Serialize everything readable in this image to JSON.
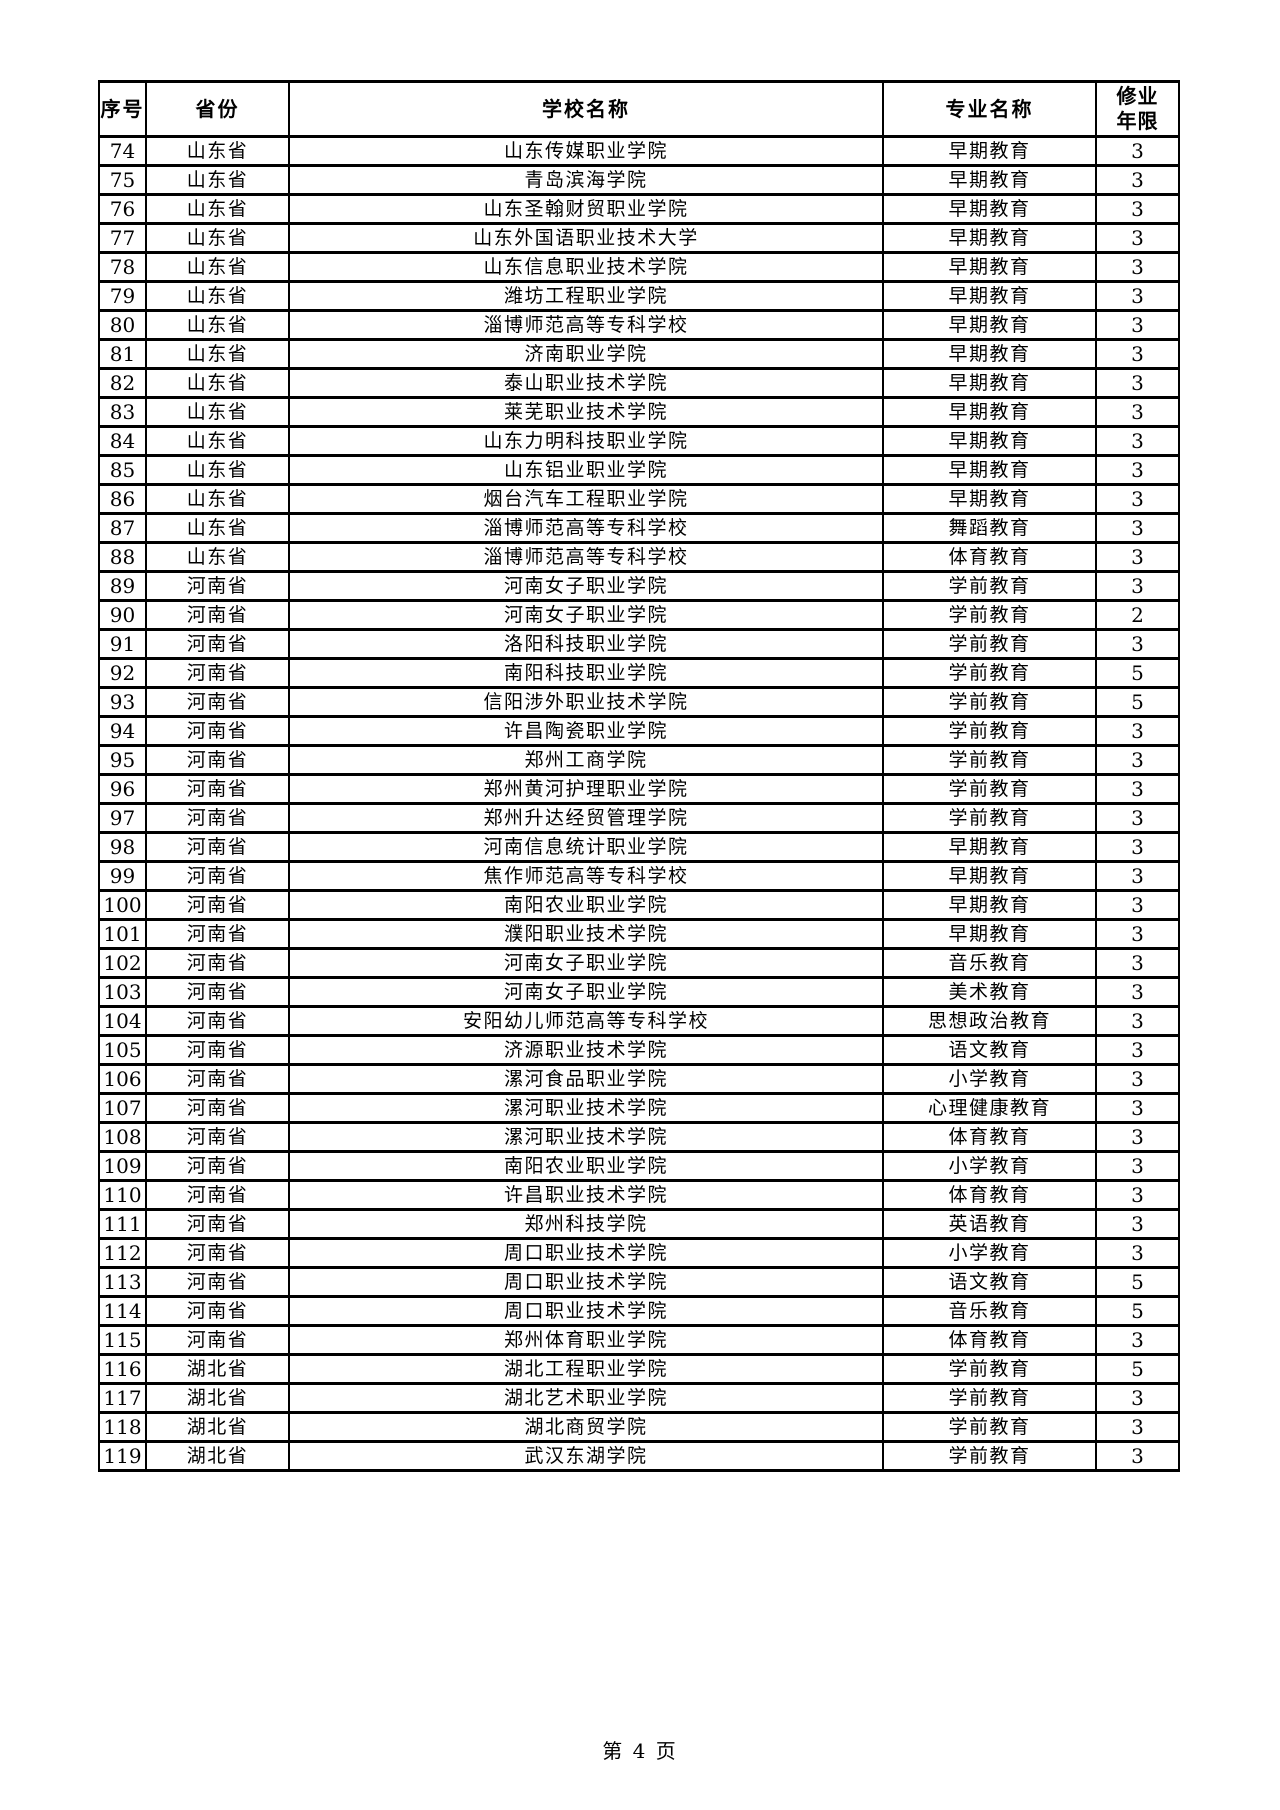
{
  "page": {
    "footer": "第 4 页"
  },
  "table": {
    "columns": [
      "序号",
      "省份",
      "学校名称",
      "专业名称",
      "修业\n年限"
    ],
    "rows": [
      {
        "no": "74",
        "province": "山东省",
        "school": "山东传媒职业学院",
        "major": "早期教育",
        "years": "3"
      },
      {
        "no": "75",
        "province": "山东省",
        "school": "青岛滨海学院",
        "major": "早期教育",
        "years": "3"
      },
      {
        "no": "76",
        "province": "山东省",
        "school": "山东圣翰财贸职业学院",
        "major": "早期教育",
        "years": "3"
      },
      {
        "no": "77",
        "province": "山东省",
        "school": "山东外国语职业技术大学",
        "major": "早期教育",
        "years": "3"
      },
      {
        "no": "78",
        "province": "山东省",
        "school": "山东信息职业技术学院",
        "major": "早期教育",
        "years": "3"
      },
      {
        "no": "79",
        "province": "山东省",
        "school": "潍坊工程职业学院",
        "major": "早期教育",
        "years": "3"
      },
      {
        "no": "80",
        "province": "山东省",
        "school": "淄博师范高等专科学校",
        "major": "早期教育",
        "years": "3"
      },
      {
        "no": "81",
        "province": "山东省",
        "school": "济南职业学院",
        "major": "早期教育",
        "years": "3"
      },
      {
        "no": "82",
        "province": "山东省",
        "school": "泰山职业技术学院",
        "major": "早期教育",
        "years": "3"
      },
      {
        "no": "83",
        "province": "山东省",
        "school": "莱芜职业技术学院",
        "major": "早期教育",
        "years": "3"
      },
      {
        "no": "84",
        "province": "山东省",
        "school": "山东力明科技职业学院",
        "major": "早期教育",
        "years": "3"
      },
      {
        "no": "85",
        "province": "山东省",
        "school": "山东铝业职业学院",
        "major": "早期教育",
        "years": "3"
      },
      {
        "no": "86",
        "province": "山东省",
        "school": "烟台汽车工程职业学院",
        "major": "早期教育",
        "years": "3"
      },
      {
        "no": "87",
        "province": "山东省",
        "school": "淄博师范高等专科学校",
        "major": "舞蹈教育",
        "years": "3"
      },
      {
        "no": "88",
        "province": "山东省",
        "school": "淄博师范高等专科学校",
        "major": "体育教育",
        "years": "3"
      },
      {
        "no": "89",
        "province": "河南省",
        "school": "河南女子职业学院",
        "major": "学前教育",
        "years": "3"
      },
      {
        "no": "90",
        "province": "河南省",
        "school": "河南女子职业学院",
        "major": "学前教育",
        "years": "2"
      },
      {
        "no": "91",
        "province": "河南省",
        "school": "洛阳科技职业学院",
        "major": "学前教育",
        "years": "3"
      },
      {
        "no": "92",
        "province": "河南省",
        "school": "南阳科技职业学院",
        "major": "学前教育",
        "years": "5"
      },
      {
        "no": "93",
        "province": "河南省",
        "school": "信阳涉外职业技术学院",
        "major": "学前教育",
        "years": "5"
      },
      {
        "no": "94",
        "province": "河南省",
        "school": "许昌陶瓷职业学院",
        "major": "学前教育",
        "years": "3"
      },
      {
        "no": "95",
        "province": "河南省",
        "school": "郑州工商学院",
        "major": "学前教育",
        "years": "3"
      },
      {
        "no": "96",
        "province": "河南省",
        "school": "郑州黄河护理职业学院",
        "major": "学前教育",
        "years": "3"
      },
      {
        "no": "97",
        "province": "河南省",
        "school": "郑州升达经贸管理学院",
        "major": "学前教育",
        "years": "3"
      },
      {
        "no": "98",
        "province": "河南省",
        "school": "河南信息统计职业学院",
        "major": "早期教育",
        "years": "3"
      },
      {
        "no": "99",
        "province": "河南省",
        "school": "焦作师范高等专科学校",
        "major": "早期教育",
        "years": "3"
      },
      {
        "no": "100",
        "province": "河南省",
        "school": "南阳农业职业学院",
        "major": "早期教育",
        "years": "3"
      },
      {
        "no": "101",
        "province": "河南省",
        "school": "濮阳职业技术学院",
        "major": "早期教育",
        "years": "3"
      },
      {
        "no": "102",
        "province": "河南省",
        "school": "河南女子职业学院",
        "major": "音乐教育",
        "years": "3"
      },
      {
        "no": "103",
        "province": "河南省",
        "school": "河南女子职业学院",
        "major": "美术教育",
        "years": "3"
      },
      {
        "no": "104",
        "province": "河南省",
        "school": "安阳幼儿师范高等专科学校",
        "major": "思想政治教育",
        "years": "3"
      },
      {
        "no": "105",
        "province": "河南省",
        "school": "济源职业技术学院",
        "major": "语文教育",
        "years": "3"
      },
      {
        "no": "106",
        "province": "河南省",
        "school": "漯河食品职业学院",
        "major": "小学教育",
        "years": "3"
      },
      {
        "no": "107",
        "province": "河南省",
        "school": "漯河职业技术学院",
        "major": "心理健康教育",
        "years": "3"
      },
      {
        "no": "108",
        "province": "河南省",
        "school": "漯河职业技术学院",
        "major": "体育教育",
        "years": "3"
      },
      {
        "no": "109",
        "province": "河南省",
        "school": "南阳农业职业学院",
        "major": "小学教育",
        "years": "3"
      },
      {
        "no": "110",
        "province": "河南省",
        "school": "许昌职业技术学院",
        "major": "体育教育",
        "years": "3"
      },
      {
        "no": "111",
        "province": "河南省",
        "school": "郑州科技学院",
        "major": "英语教育",
        "years": "3"
      },
      {
        "no": "112",
        "province": "河南省",
        "school": "周口职业技术学院",
        "major": "小学教育",
        "years": "3"
      },
      {
        "no": "113",
        "province": "河南省",
        "school": "周口职业技术学院",
        "major": "语文教育",
        "years": "5"
      },
      {
        "no": "114",
        "province": "河南省",
        "school": "周口职业技术学院",
        "major": "音乐教育",
        "years": "5"
      },
      {
        "no": "115",
        "province": "河南省",
        "school": "郑州体育职业学院",
        "major": "体育教育",
        "years": "3"
      },
      {
        "no": "116",
        "province": "湖北省",
        "school": "湖北工程职业学院",
        "major": "学前教育",
        "years": "5"
      },
      {
        "no": "117",
        "province": "湖北省",
        "school": "湖北艺术职业学院",
        "major": "学前教育",
        "years": "3"
      },
      {
        "no": "118",
        "province": "湖北省",
        "school": "湖北商贸学院",
        "major": "学前教育",
        "years": "3"
      },
      {
        "no": "119",
        "province": "湖北省",
        "school": "武汉东湖学院",
        "major": "学前教育",
        "years": "3"
      }
    ]
  }
}
